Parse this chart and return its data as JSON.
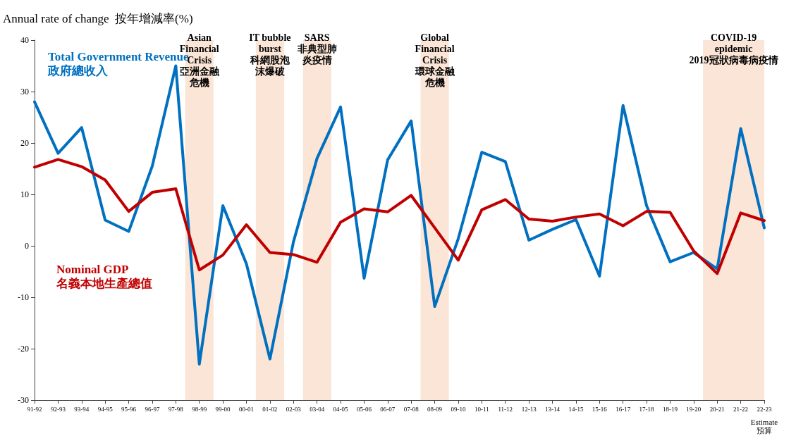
{
  "chart_data": {
    "type": "line",
    "ylabel": "Annual rate of change  按年增減率(%)",
    "categories": [
      "91-92",
      "92-93",
      "93-94",
      "94-95",
      "95-96",
      "96-97",
      "97-98",
      "98-99",
      "99-00",
      "00-01",
      "01-02",
      "02-03",
      "03-04",
      "04-05",
      "05-06",
      "06-07",
      "07-08",
      "08-09",
      "09-10",
      "10-11",
      "11-12",
      "12-13",
      "13-14",
      "14-15",
      "15-16",
      "16-17",
      "17-18",
      "18-19",
      "19-20",
      "20-21",
      "21-22",
      "22-23"
    ],
    "series": [
      {
        "name": "Total Government Revenue\n政府總收入",
        "color": "#0070c0",
        "values": [
          28,
          18,
          23,
          5,
          2.8,
          15.5,
          35,
          -23,
          7.8,
          -3.5,
          -22,
          0.8,
          17,
          27,
          -6.3,
          16.7,
          24.3,
          -11.8,
          1.4,
          18.2,
          16.4,
          1.1,
          3.2,
          5.1,
          -5.9,
          27.3,
          7.8,
          -3.1,
          -1.3,
          -4.5,
          22.8,
          3.5
        ]
      },
      {
        "name": "Nominal GDP\n名義本地生產總值",
        "color": "#c00000",
        "values": [
          15.3,
          16.8,
          15.4,
          12.8,
          6.7,
          10.4,
          11.1,
          -4.7,
          -1.8,
          4.1,
          -1.3,
          -1.7,
          -3.2,
          4.6,
          7.2,
          6.6,
          9.8,
          3.5,
          -2.8,
          7,
          9,
          5.2,
          4.8,
          5.6,
          6.2,
          3.9,
          6.7,
          6.5,
          -1,
          -5.4,
          6.4,
          4.9
        ]
      }
    ],
    "ylim": [
      -30,
      40
    ],
    "yticks": [
      -30,
      -20,
      -10,
      0,
      10,
      20,
      30,
      40
    ],
    "grid": false,
    "legend": false,
    "marker": "none",
    "line_style": "solid",
    "bands": [
      {
        "axis": "x",
        "from": "98-99",
        "to": "98-99",
        "label": "Asian\nFinancial\nCrisis\n亞洲金融危機",
        "color": "#fbe5d6"
      },
      {
        "axis": "x",
        "from": "01-02",
        "to": "01-02",
        "label": "IT bubble\nburst\n科網股泡沫爆破",
        "color": "#fbe5d6"
      },
      {
        "axis": "x",
        "from": "03-04",
        "to": "03-04",
        "label": "SARS\n非典型肺炎疫情",
        "color": "#fbe5d6"
      },
      {
        "axis": "x",
        "from": "08-09",
        "to": "08-09",
        "label": "Global\nFinancial\nCrisis\n環球金融危機",
        "color": "#fbe5d6"
      },
      {
        "axis": "x",
        "from": "20-21",
        "to": "22-23",
        "label": "COVID-19\nepidemic\n2019冠狀病毒病疫情",
        "color": "#fbe5d6"
      }
    ],
    "annotations": [
      "Estimate\n預算"
    ]
  }
}
